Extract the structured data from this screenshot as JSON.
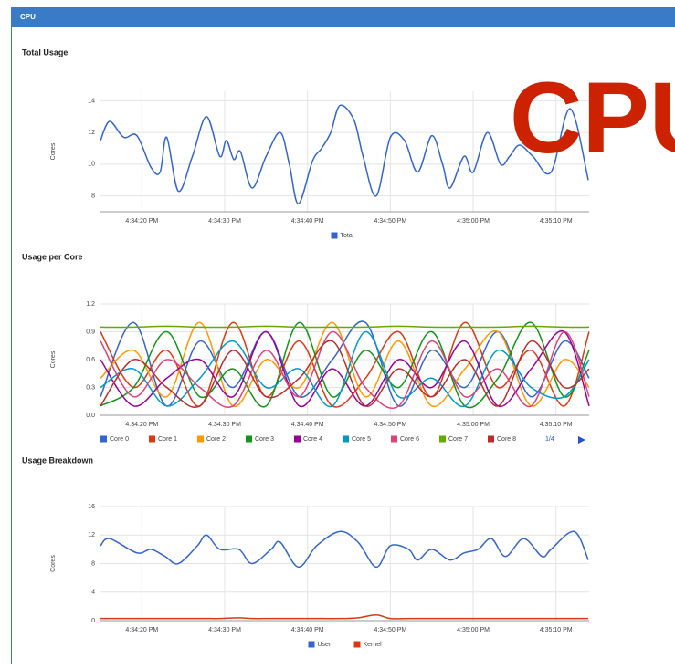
{
  "header": {
    "title": "CPU"
  },
  "overlay_text": "CPU",
  "chart_data": [
    {
      "type": "line",
      "title": "Total Usage",
      "ylabel": "Cores",
      "x": [
        15,
        16.1,
        17.8,
        19.4,
        21.1,
        22.2,
        23,
        24.4,
        26.1,
        27.8,
        29.4,
        30.2,
        31.1,
        31.9,
        33.3,
        35,
        36.7,
        37.8,
        38.9,
        40.6,
        41.7,
        42.8,
        43.9,
        45.6,
        46.7,
        48.3,
        50,
        51.7,
        53.3,
        55,
        56.3,
        57.2,
        58.9,
        60,
        61.7,
        63.3,
        64.4,
        65.6,
        67.2,
        69.4,
        71.7,
        73.9
      ],
      "series": [
        {
          "name": "Total",
          "color": "#3366cc",
          "values": [
            11.5,
            12.7,
            11.7,
            11.8,
            9.8,
            9.5,
            11.7,
            8.3,
            10.5,
            13,
            10.5,
            11.5,
            10.3,
            10.8,
            8.5,
            10.5,
            12,
            10,
            7.5,
            10.2,
            11,
            12,
            13.7,
            12.8,
            10.5,
            8,
            11.7,
            11.5,
            9.5,
            11.8,
            10,
            8.5,
            10.5,
            9.5,
            12,
            10,
            10.5,
            11.2,
            10.5,
            9.5,
            13.5,
            9
          ]
        }
      ],
      "xlim": [
        15,
        74
      ],
      "xticks": [
        {
          "value": 20,
          "label": "4:34:20 PM"
        },
        {
          "value": 30,
          "label": "4:34:30 PM"
        },
        {
          "value": 40,
          "label": "4:34:40 PM"
        },
        {
          "value": 50,
          "label": "4:34:50 PM"
        },
        {
          "value": 60,
          "label": "4:35:00 PM"
        },
        {
          "value": 70,
          "label": "4:35:10 PM"
        }
      ],
      "ylim": [
        7,
        14.6
      ],
      "yticks": [
        8,
        10,
        12,
        14
      ],
      "grid": true,
      "legend": "bottom"
    },
    {
      "type": "line",
      "title": "Usage per Core",
      "ylabel": "Cores",
      "x": [
        15,
        19,
        23,
        27,
        31,
        35,
        39,
        43,
        47,
        51,
        55,
        59,
        63,
        67,
        71,
        74
      ],
      "series": [
        {
          "name": "Core 0",
          "color": "#3366cc",
          "values": [
            0.2,
            1.0,
            0.1,
            0.8,
            0.3,
            0.9,
            0.2,
            0.6,
            1.0,
            0.1,
            0.7,
            0.3,
            0.9,
            0.2,
            0.8,
            0.4
          ]
        },
        {
          "name": "Core 1",
          "color": "#dc3912",
          "values": [
            0.9,
            0.3,
            0.7,
            0.1,
            1.0,
            0.2,
            0.8,
            0.1,
            0.4,
            0.9,
            0.2,
            1.0,
            0.3,
            0.7,
            0.1,
            0.9
          ]
        },
        {
          "name": "Core 2",
          "color": "#ff9900",
          "values": [
            0.4,
            0.7,
            0.2,
            1.0,
            0.1,
            0.6,
            0.3,
            1.0,
            0.2,
            0.8,
            0.1,
            0.5,
            0.9,
            0.1,
            0.6,
            0.3
          ]
        },
        {
          "name": "Core 3",
          "color": "#109618",
          "values": [
            0.1,
            0.3,
            0.9,
            0.2,
            0.5,
            0.1,
            1.0,
            0.2,
            0.7,
            0.3,
            0.9,
            0.1,
            0.4,
            1.0,
            0.2,
            0.7
          ]
        },
        {
          "name": "Core 4",
          "color": "#990099",
          "values": [
            0.6,
            0.1,
            0.4,
            0.6,
            0.2,
            0.9,
            0.1,
            0.5,
            0.1,
            0.6,
            0.3,
            0.8,
            0.1,
            0.5,
            0.9,
            0.1
          ]
        },
        {
          "name": "Core 5",
          "color": "#0099c6",
          "values": [
            0.3,
            0.5,
            0.1,
            0.4,
            0.8,
            0.3,
            0.5,
            0.1,
            0.9,
            0.2,
            0.4,
            0.1,
            0.7,
            0.3,
            0.2,
            0.6
          ]
        },
        {
          "name": "Core 6",
          "color": "#dd4477",
          "values": [
            0.8,
            0.2,
            0.6,
            0.3,
            0.1,
            0.7,
            0.2,
            0.9,
            0.3,
            0.1,
            0.8,
            0.2,
            0.5,
            0.1,
            0.9,
            0.2
          ]
        },
        {
          "name": "Core 7",
          "color": "#66aa00",
          "values": [
            0.95,
            0.95,
            0.96,
            0.95,
            0.95,
            0.96,
            0.95,
            0.95,
            0.95,
            0.96,
            0.95,
            0.95,
            0.95,
            0.96,
            0.95,
            0.95
          ]
        },
        {
          "name": "Core 8",
          "color": "#b82e2e",
          "values": [
            0.1,
            0.6,
            0.3,
            0.1,
            0.7,
            0.2,
            0.4,
            0.8,
            0.1,
            0.5,
            0.2,
            0.6,
            0.1,
            0.8,
            0.3,
            0.5
          ]
        }
      ],
      "legend_page": "1/4",
      "xlim": [
        15,
        74
      ],
      "xticks": [
        {
          "value": 20,
          "label": "4:34:20 PM"
        },
        {
          "value": 30,
          "label": "4:34:30 PM"
        },
        {
          "value": 40,
          "label": "4:34:40 PM"
        },
        {
          "value": 50,
          "label": "4:34:50 PM"
        },
        {
          "value": 60,
          "label": "4:35:00 PM"
        },
        {
          "value": 70,
          "label": "4:35:10 PM"
        }
      ],
      "ylim": [
        0,
        1.2
      ],
      "yticks": [
        {
          "value": 0,
          "label": "0.0"
        },
        0.3,
        0.6,
        0.9,
        1.2
      ],
      "grid": true,
      "legend": "bottom"
    },
    {
      "type": "line",
      "title": "Usage Breakdown",
      "ylabel": "Cores",
      "x": [
        15,
        16.1,
        19.4,
        21.1,
        22.8,
        24.4,
        26.7,
        27.8,
        29.4,
        31.7,
        33.3,
        35.6,
        36.7,
        38.9,
        41.1,
        43.9,
        46.1,
        48.3,
        50,
        52.2,
        53.3,
        55,
        57.2,
        58.9,
        60.6,
        62.2,
        63.9,
        66.1,
        68.3,
        69.4,
        72.2,
        73.9
      ],
      "series": [
        {
          "name": "User",
          "color": "#3366cc",
          "values": [
            10.5,
            11.5,
            9.5,
            10,
            9,
            8,
            10.5,
            12,
            10,
            10,
            8,
            10,
            11,
            7.5,
            10.5,
            12.5,
            11,
            7.5,
            10.5,
            10,
            8.5,
            10,
            8.5,
            9.5,
            10,
            11.5,
            9,
            11.5,
            9,
            10,
            12.5,
            8.5
          ]
        },
        {
          "name": "Kernel",
          "color": "#dc3912",
          "values": [
            0.3,
            0.3,
            0.3,
            0.3,
            0.3,
            0.3,
            0.3,
            0.3,
            0.3,
            0.4,
            0.3,
            0.3,
            0.3,
            0.3,
            0.3,
            0.3,
            0.4,
            0.8,
            0.3,
            0.3,
            0.3,
            0.3,
            0.3,
            0.3,
            0.3,
            0.3,
            0.3,
            0.3,
            0.3,
            0.3,
            0.3,
            0.3
          ]
        }
      ],
      "xlim": [
        15,
        74
      ],
      "xticks": [
        {
          "value": 20,
          "label": "4:34:20 PM"
        },
        {
          "value": 30,
          "label": "4:34:30 PM"
        },
        {
          "value": 40,
          "label": "4:34:40 PM"
        },
        {
          "value": 50,
          "label": "4:34:50 PM"
        },
        {
          "value": 60,
          "label": "4:35:00 PM"
        },
        {
          "value": 70,
          "label": "4:35:10 PM"
        }
      ],
      "ylim": [
        0,
        16
      ],
      "yticks": [
        0,
        4,
        8,
        12,
        16
      ],
      "grid": true,
      "legend": "bottom"
    }
  ]
}
